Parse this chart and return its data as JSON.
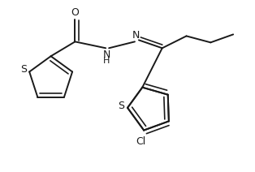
{
  "background": "#ffffff",
  "line_color": "#1a1a1a",
  "line_width": 1.4,
  "figsize": [
    3.14,
    2.12
  ],
  "dpi": 100,
  "xlim": [
    0,
    314
  ],
  "ylim": [
    0,
    212
  ]
}
